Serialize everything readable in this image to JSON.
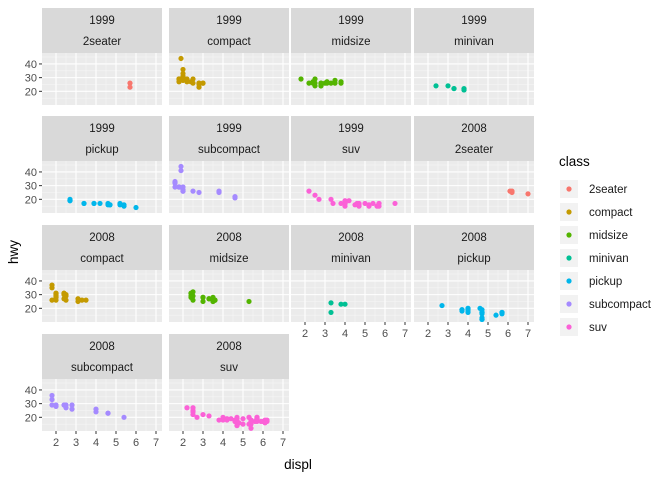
{
  "chart_data": {
    "type": "scatter",
    "xlabel": "displ",
    "ylabel": "hwy",
    "xlim": [
      1.3,
      7.3
    ],
    "ylim": [
      10,
      48
    ],
    "xticks": [
      2,
      3,
      4,
      5,
      6,
      7
    ],
    "yticks": [
      20,
      30,
      40
    ],
    "grid": true,
    "legend": {
      "title": "class",
      "position": "right",
      "entries": [
        {
          "name": "2seater",
          "color": "#F8766D"
        },
        {
          "name": "compact",
          "color": "#C49A00"
        },
        {
          "name": "midsize",
          "color": "#53B400"
        },
        {
          "name": "minivan",
          "color": "#00C094"
        },
        {
          "name": "pickup",
          "color": "#00B6EB"
        },
        {
          "name": "subcompact",
          "color": "#A58AFF"
        },
        {
          "name": "suv",
          "color": "#FB61D7"
        }
      ]
    },
    "panels": [
      {
        "year": "1999",
        "class": "2seater",
        "points": [
          [
            5.7,
            26
          ],
          [
            5.7,
            23
          ]
        ]
      },
      {
        "year": "1999",
        "class": "compact",
        "points": [
          [
            1.8,
            29
          ],
          [
            1.8,
            29
          ],
          [
            2.0,
            31
          ],
          [
            2.0,
            30
          ],
          [
            2.8,
            26
          ],
          [
            2.8,
            26
          ],
          [
            1.8,
            29
          ],
          [
            2.8,
            25
          ],
          [
            2.0,
            28
          ],
          [
            2.0,
            29
          ],
          [
            2.0,
            29
          ],
          [
            2.2,
            27
          ],
          [
            2.2,
            29
          ],
          [
            2.4,
            27
          ],
          [
            3.0,
            26
          ],
          [
            3.0,
            26
          ],
          [
            1.9,
            44
          ],
          [
            2.0,
            29
          ],
          [
            2.0,
            33
          ],
          [
            2.0,
            36
          ],
          [
            2.8,
            23
          ],
          [
            2.0,
            29
          ],
          [
            2.5,
            29
          ],
          [
            2.5,
            26
          ],
          [
            1.8,
            27
          ]
        ]
      },
      {
        "year": "1999",
        "class": "midsize",
        "points": [
          [
            2.8,
            26
          ],
          [
            3.1,
            27
          ],
          [
            2.4,
            27
          ],
          [
            3.0,
            26
          ],
          [
            3.3,
            26
          ],
          [
            2.5,
            24
          ],
          [
            2.5,
            26
          ],
          [
            3.8,
            26
          ],
          [
            1.8,
            29
          ],
          [
            2.8,
            24
          ],
          [
            2.2,
            26
          ],
          [
            2.4,
            26
          ],
          [
            2.8,
            25
          ],
          [
            3.5,
            28
          ],
          [
            3.5,
            26
          ],
          [
            2.8,
            24
          ],
          [
            3.1,
            26
          ],
          [
            2.5,
            29
          ],
          [
            2.8,
            26
          ],
          [
            3.8,
            27
          ]
        ]
      },
      {
        "year": "1999",
        "class": "minivan",
        "points": [
          [
            2.4,
            24
          ],
          [
            3.0,
            24
          ],
          [
            3.3,
            22
          ],
          [
            3.3,
            22
          ],
          [
            3.8,
            21
          ],
          [
            3.8,
            22
          ],
          [
            3.8,
            21
          ]
        ]
      },
      {
        "year": "1999",
        "class": "pickup",
        "points": [
          [
            2.7,
            20
          ],
          [
            2.7,
            19
          ],
          [
            3.9,
            17
          ],
          [
            3.9,
            17
          ],
          [
            5.2,
            17
          ],
          [
            5.2,
            16
          ],
          [
            4.7,
            16
          ],
          [
            4.7,
            16
          ],
          [
            3.4,
            17
          ],
          [
            4.2,
            17
          ],
          [
            4.6,
            17
          ],
          [
            4.6,
            16
          ],
          [
            5.4,
            15
          ],
          [
            5.4,
            16
          ],
          [
            2.7,
            19
          ],
          [
            3.4,
            17
          ],
          [
            6.0,
            14
          ]
        ]
      },
      {
        "year": "1999",
        "class": "subcompact",
        "points": [
          [
            1.6,
            33
          ],
          [
            1.6,
            32
          ],
          [
            1.6,
            32
          ],
          [
            1.6,
            29
          ],
          [
            1.6,
            32
          ],
          [
            1.8,
            29
          ],
          [
            1.8,
            29
          ],
          [
            1.8,
            29
          ],
          [
            2.0,
            27
          ],
          [
            2.0,
            26
          ],
          [
            2.0,
            26
          ],
          [
            3.8,
            26
          ],
          [
            4.6,
            21
          ],
          [
            4.6,
            22
          ],
          [
            2.8,
            25
          ],
          [
            1.9,
            44
          ],
          [
            1.9,
            41
          ],
          [
            2.0,
            29
          ],
          [
            2.5,
            26
          ],
          [
            3.8,
            25
          ]
        ]
      },
      {
        "year": "1999",
        "class": "suv",
        "points": [
          [
            5.7,
            17
          ],
          [
            5.7,
            15
          ],
          [
            5.2,
            15
          ],
          [
            5.2,
            16
          ],
          [
            4.0,
            17
          ],
          [
            4.0,
            17
          ],
          [
            4.0,
            19
          ],
          [
            5.0,
            17
          ],
          [
            4.0,
            17
          ],
          [
            4.7,
            17
          ],
          [
            4.7,
            15
          ],
          [
            5.4,
            17
          ],
          [
            5.6,
            15
          ],
          [
            4.7,
            16
          ],
          [
            4.0,
            17
          ],
          [
            4.0,
            17
          ],
          [
            4.6,
            17
          ],
          [
            5.7,
            17
          ],
          [
            4.5,
            16
          ],
          [
            3.3,
            20
          ],
          [
            2.5,
            23
          ],
          [
            2.7,
            20
          ],
          [
            3.4,
            17
          ],
          [
            2.2,
            26
          ],
          [
            4.0,
            15
          ],
          [
            4.0,
            17
          ],
          [
            4.2,
            19
          ],
          [
            3.8,
            17
          ],
          [
            6.5,
            17
          ]
        ]
      },
      {
        "year": "2008",
        "class": "2seater",
        "points": [
          [
            6.1,
            26
          ],
          [
            6.2,
            26
          ],
          [
            6.2,
            25
          ],
          [
            7.0,
            24
          ]
        ]
      },
      {
        "year": "2008",
        "class": "compact",
        "points": [
          [
            2.0,
            31
          ],
          [
            2.0,
            30
          ],
          [
            3.1,
            27
          ],
          [
            1.8,
            26
          ],
          [
            2.0,
            28
          ],
          [
            3.1,
            25
          ],
          [
            2.4,
            31
          ],
          [
            2.5,
            30
          ],
          [
            3.5,
            26
          ],
          [
            2.4,
            31
          ],
          [
            1.8,
            37
          ],
          [
            1.8,
            35
          ],
          [
            2.0,
            29
          ],
          [
            2.0,
            28
          ],
          [
            2.0,
            29
          ],
          [
            2.0,
            29
          ],
          [
            2.0,
            31
          ],
          [
            2.0,
            26
          ],
          [
            2.5,
            29
          ],
          [
            2.5,
            26
          ],
          [
            3.3,
            26
          ],
          [
            2.4,
            30
          ],
          [
            2.4,
            27
          ]
        ]
      },
      {
        "year": "2008",
        "class": "midsize",
        "points": [
          [
            2.4,
            31
          ],
          [
            3.5,
            26
          ],
          [
            3.0,
            28
          ],
          [
            3.6,
            26
          ],
          [
            3.5,
            25
          ],
          [
            2.4,
            28
          ],
          [
            3.5,
            25
          ],
          [
            2.5,
            26
          ],
          [
            3.5,
            26
          ],
          [
            3.3,
            27
          ],
          [
            5.3,
            25
          ],
          [
            2.4,
            29
          ],
          [
            3.5,
            28
          ],
          [
            3.0,
            25
          ],
          [
            3.0,
            28
          ],
          [
            3.3,
            27
          ],
          [
            2.4,
            31
          ],
          [
            3.5,
            26
          ],
          [
            2.5,
            32
          ],
          [
            2.5,
            29
          ],
          [
            3.6,
            26
          ]
        ]
      },
      {
        "year": "2008",
        "class": "minivan",
        "points": [
          [
            3.3,
            24
          ],
          [
            4.0,
            23
          ],
          [
            3.3,
            17
          ],
          [
            3.8,
            23
          ]
        ]
      },
      {
        "year": "2008",
        "class": "pickup",
        "points": [
          [
            4.7,
            17
          ],
          [
            4.7,
            12
          ],
          [
            4.7,
            12
          ],
          [
            5.7,
            17
          ],
          [
            3.7,
            19
          ],
          [
            3.7,
            18
          ],
          [
            4.7,
            17
          ],
          [
            4.7,
            17
          ],
          [
            4.0,
            20
          ],
          [
            4.0,
            17
          ],
          [
            4.6,
            20
          ],
          [
            5.4,
            15
          ],
          [
            5.7,
            17
          ],
          [
            4.7,
            19
          ],
          [
            4.7,
            17
          ],
          [
            4.7,
            16
          ],
          [
            5.7,
            16
          ],
          [
            4.0,
            18
          ],
          [
            2.7,
            22
          ],
          [
            4.0,
            20
          ],
          [
            3.7,
            19
          ],
          [
            4.0,
            19
          ],
          [
            4.7,
            12
          ],
          [
            4.7,
            13
          ],
          [
            5.7,
            17
          ]
        ]
      },
      {
        "year": "2008",
        "class": "subcompact",
        "points": [
          [
            1.8,
            36
          ],
          [
            1.8,
            33
          ],
          [
            1.8,
            29
          ],
          [
            2.0,
            29
          ],
          [
            2.0,
            28
          ],
          [
            2.4,
            29
          ],
          [
            2.5,
            29
          ],
          [
            2.5,
            27
          ],
          [
            2.8,
            26
          ],
          [
            2.8,
            29
          ],
          [
            4.0,
            24
          ],
          [
            4.0,
            26
          ],
          [
            4.6,
            23
          ],
          [
            5.4,
            20
          ],
          [
            4.6,
            23
          ]
        ]
      },
      {
        "year": "2008",
        "class": "suv",
        "points": [
          [
            5.3,
            20
          ],
          [
            5.3,
            20
          ],
          [
            5.3,
            15
          ],
          [
            5.7,
            20
          ],
          [
            6.0,
            17
          ],
          [
            4.7,
            17
          ],
          [
            5.7,
            17
          ],
          [
            6.1,
            18
          ],
          [
            4.6,
            18
          ],
          [
            5.4,
            17
          ],
          [
            5.4,
            18
          ],
          [
            6.2,
            17
          ],
          [
            4.7,
            17
          ],
          [
            5.4,
            15
          ],
          [
            5.7,
            20
          ],
          [
            5.7,
            19
          ],
          [
            4.7,
            14
          ],
          [
            5.4,
            12
          ],
          [
            4.7,
            16
          ],
          [
            4.6,
            17
          ],
          [
            5.4,
            18
          ],
          [
            5.9,
            17
          ],
          [
            4.7,
            19
          ],
          [
            4.0,
            19
          ],
          [
            4.6,
            17
          ],
          [
            5.0,
            19
          ],
          [
            4.0,
            20
          ],
          [
            4.7,
            20
          ],
          [
            3.0,
            22
          ],
          [
            2.5,
            25
          ],
          [
            2.5,
            27
          ],
          [
            2.7,
            20
          ],
          [
            4.0,
            18
          ],
          [
            2.2,
            27
          ],
          [
            2.5,
            24
          ],
          [
            4.4,
            19
          ],
          [
            6.2,
            18
          ],
          [
            4.2,
            19
          ],
          [
            5.0,
            15
          ],
          [
            5.6,
            17
          ],
          [
            4.8,
            16
          ],
          [
            3.8,
            18
          ],
          [
            4.7,
            14
          ],
          [
            5.7,
            19
          ],
          [
            2.5,
            22
          ],
          [
            4.2,
            18
          ],
          [
            3.3,
            21
          ],
          [
            5.4,
            17
          ],
          [
            6.1,
            16
          ]
        ]
      }
    ]
  }
}
